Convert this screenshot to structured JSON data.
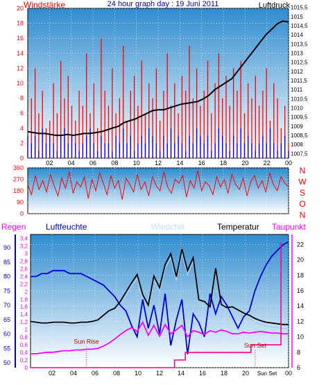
{
  "chart_data": [
    {
      "type": "line",
      "title": "24 hour graph day : 19 Juni 2011",
      "left_axis_label": "Windstärke",
      "right_axis_label": "Luftdruck",
      "left_ticks": [
        "0",
        "2",
        "4",
        "6",
        "8",
        "10",
        "12",
        "14",
        "16",
        "18",
        "20"
      ],
      "right_ticks": [
        "1007,5",
        "1008",
        "1008,5",
        "1009",
        "1009,5",
        "1010",
        "1010,5",
        "1011",
        "1011,5",
        "1012",
        "1012,5",
        "1013",
        "1013,5",
        "1014",
        "1014,5",
        "1015",
        "1015,5"
      ],
      "x_ticks": [
        "02",
        "04",
        "06",
        "08",
        "10",
        "12",
        "14",
        "16",
        "18",
        "20",
        "22",
        "00"
      ],
      "left_ylim": [
        0,
        20
      ],
      "right_ylim": [
        1007.25,
        1015.45
      ],
      "series": [
        {
          "key": "gust",
          "color": "#ff0000",
          "y": [
            3,
            8,
            12,
            6,
            9,
            4,
            5,
            10,
            6,
            13,
            8,
            11,
            7,
            5,
            9,
            7,
            14,
            6,
            10,
            4,
            16,
            9,
            7,
            12,
            6,
            8,
            15,
            5,
            9,
            11,
            7,
            13,
            6,
            10,
            8,
            12,
            5,
            9,
            14,
            7,
            10,
            6,
            11,
            9,
            15,
            8,
            12,
            7,
            9,
            13,
            6,
            10,
            14,
            8,
            11,
            7,
            12,
            9,
            13,
            6,
            10,
            8,
            11,
            7,
            9,
            12,
            5,
            10,
            8,
            4,
            7,
            2
          ]
        },
        {
          "key": "wind",
          "color": "#0000ff",
          "y": [
            3,
            2,
            3,
            1,
            4,
            2,
            3,
            2,
            1,
            3,
            4,
            2,
            3,
            2,
            1,
            2,
            3,
            4,
            2,
            1,
            3,
            2,
            2,
            1,
            3,
            2,
            4,
            2,
            3,
            1,
            2,
            3,
            2,
            4,
            3,
            2,
            1,
            3,
            2,
            4,
            2,
            3,
            2,
            1,
            3,
            2,
            4,
            3,
            2,
            3,
            1,
            2,
            4,
            3,
            2,
            1,
            3,
            2,
            4,
            2,
            3,
            2,
            1,
            2,
            3,
            2,
            4,
            2,
            1,
            2,
            3,
            1
          ]
        },
        {
          "key": "pressure",
          "color": "#000000",
          "y": [
            1008.7,
            1008.65,
            1008.6,
            1008.6,
            1008.55,
            1008.5,
            1008.5,
            1008.55,
            1008.5,
            1008.55,
            1008.6,
            1008.6,
            1008.65,
            1008.7,
            1008.8,
            1008.9,
            1009.0,
            1009.2,
            1009.3,
            1009.4,
            1009.55,
            1009.7,
            1009.85,
            1009.9,
            1009.9,
            1010.0,
            1010.1,
            1010.2,
            1010.25,
            1010.3,
            1010.35,
            1010.5,
            1010.7,
            1011.0,
            1011.2,
            1011.4,
            1011.6,
            1012.0,
            1012.4,
            1012.8,
            1013.2,
            1013.6,
            1014.0,
            1014.3,
            1014.6,
            1014.75,
            1014.7
          ]
        }
      ]
    },
    {
      "type": "line",
      "title": "",
      "left_ticks": [
        "0",
        "90",
        "180",
        "270",
        "360"
      ],
      "right_ticks": [
        "N",
        "W",
        "S",
        "O",
        "N"
      ],
      "x_ticks": [
        "02",
        "04",
        "06",
        "08",
        "10",
        "12",
        "14",
        "16",
        "18",
        "20",
        "22",
        "00"
      ],
      "ylim": [
        0,
        360
      ],
      "series": [
        {
          "key": "direction",
          "color": "#ff0000",
          "y": [
            230,
            150,
            300,
            190,
            260,
            170,
            310,
            220,
            140,
            280,
            200,
            330,
            160,
            250,
            210,
            290,
            120,
            270,
            180,
            320,
            240,
            150,
            300,
            200,
            260,
            110,
            280,
            230,
            170,
            310,
            190,
            250,
            140,
            290,
            220,
            180,
            330,
            210,
            160,
            270,
            240,
            300,
            130,
            260,
            200,
            340,
            180,
            250,
            220,
            150,
            290,
            210,
            270,
            160,
            310,
            230,
            190,
            280,
            140,
            250,
            300,
            200,
            260,
            170,
            320,
            230,
            180,
            290,
            240,
            210
          ]
        }
      ]
    },
    {
      "type": "line",
      "title": "",
      "labels": {
        "regen": "Regen",
        "humidity": "Luftfeuchte",
        "windchill": "Windchill",
        "temperature": "Temperatur",
        "dewpoint": "Taupunkt"
      },
      "regen_ticks": [
        "0",
        "0,2",
        "0,4",
        "0,6",
        "0,8",
        "1",
        "1,2",
        "1,4",
        "1,6",
        "1,8",
        "2",
        "2,2",
        "2,4",
        "2,6",
        "2,8",
        "3",
        "3,2",
        "3,4"
      ],
      "humidity_ticks": [
        "50",
        "55",
        "60",
        "65",
        "70",
        "75",
        "80",
        "85",
        "90"
      ],
      "temperature_ticks": [
        "6",
        "8",
        "10",
        "12",
        "14",
        "16",
        "18",
        "20",
        "22"
      ],
      "x_ticks": [
        "02",
        "04",
        "06",
        "08",
        "10",
        "12",
        "14",
        "16",
        "18",
        "20",
        "Sun Set",
        "00"
      ],
      "regen_ylim": [
        0,
        3.5
      ],
      "temperature_ylim": [
        6,
        23.3
      ],
      "annotations": [
        {
          "key": "sunrise",
          "text": "Sun Rise",
          "x": 5.2,
          "y": 9.1
        },
        {
          "key": "sunset",
          "text": "Sun Set",
          "x": 20.9,
          "y": 8.6
        }
      ],
      "series": [
        {
          "key": "humidity",
          "color": "#0000cc",
          "axis": "humidity",
          "y": [
            80,
            80,
            81,
            81,
            82,
            82,
            82,
            81,
            81,
            81,
            80,
            79,
            78,
            77,
            75,
            73,
            70,
            68,
            63,
            59,
            72,
            62,
            70,
            60,
            74,
            56,
            65,
            72,
            53,
            67,
            64,
            59,
            74,
            67,
            73,
            70,
            66,
            62,
            66,
            68,
            75,
            80,
            84,
            87,
            89,
            91,
            92
          ]
        },
        {
          "key": "temperature",
          "color": "#000000",
          "axis": "temperature",
          "y": [
            12.0,
            11.9,
            11.8,
            11.8,
            11.9,
            11.9,
            11.9,
            11.8,
            11.8,
            11.9,
            11.9,
            12.0,
            12.2,
            12.8,
            13.4,
            13.7,
            14.6,
            15.8,
            17.0,
            18.1,
            15.5,
            14.1,
            17.9,
            16.4,
            19.4,
            20.8,
            17.8,
            21.4,
            18.6,
            20.3,
            14.8,
            14.6,
            13.9,
            18.9,
            14.2,
            13.8,
            13.9,
            13.5,
            13.1,
            12.8,
            12.4,
            12.1,
            11.9,
            11.8,
            11.7,
            11.6,
            11.6
          ]
        },
        {
          "key": "windchill",
          "color": "#aaccee",
          "axis": "temperature",
          "y": [
            11.6,
            11.5,
            11.4,
            11.4,
            11.5,
            11.5,
            11.5,
            11.4,
            11.4,
            11.5,
            11.5,
            11.6,
            11.8,
            12.4,
            13.0,
            13.3,
            14.2,
            15.4,
            16.6,
            17.6,
            15.0,
            13.6,
            17.4,
            15.9,
            18.9,
            20.3,
            17.3,
            20.9,
            18.1,
            19.8,
            14.3,
            14.1,
            13.4,
            18.4,
            13.7,
            13.3,
            13.4,
            13.0,
            12.6,
            12.3,
            11.9,
            11.6,
            11.4,
            11.3,
            11.2,
            11.1,
            11.1
          ]
        },
        {
          "key": "dewpoint",
          "color": "#ff00ff",
          "axis": "temperature",
          "y": [
            7.8,
            7.8,
            7.9,
            8.0,
            8.0,
            8.1,
            8.2,
            8.2,
            8.3,
            8.3,
            8.4,
            8.4,
            8.5,
            8.8,
            9.2,
            9.7,
            10.3,
            10.8,
            11.2,
            10.7,
            11.9,
            10.2,
            11.5,
            10.1,
            11.6,
            10.4,
            10.9,
            11.5,
            10.0,
            10.8,
            10.6,
            10.3,
            10.8,
            10.6,
            10.9,
            10.7,
            10.4,
            10.4,
            10.6,
            10.5,
            10.6,
            10.7,
            10.6,
            10.5,
            10.5,
            10.4,
            10.4
          ]
        },
        {
          "key": "rain",
          "color": "#ff0088",
          "axis": "regen",
          "step": true,
          "x": [
            0,
            13.4,
            13.4,
            14.4,
            14.4,
            20.5,
            20.5,
            23.3,
            23.3
          ],
          "y": [
            0,
            0,
            0.2,
            0.2,
            0.4,
            0.4,
            0.6,
            0.6,
            3.3
          ]
        }
      ]
    }
  ]
}
